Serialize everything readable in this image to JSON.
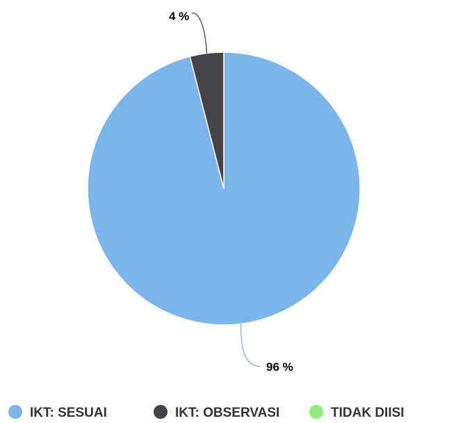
{
  "chart_data": {
    "type": "pie",
    "title": "",
    "categories": [
      "IKT: SESUAI",
      "IKT: OBSERVASI",
      "TIDAK DIISI"
    ],
    "values": [
      96,
      4,
      0
    ],
    "data_labels": [
      "96 %",
      "4 %",
      ""
    ],
    "colors": [
      "#7cb5ec",
      "#434348",
      "#90ed7d"
    ],
    "legend": {
      "position": "bottom",
      "items": [
        "IKT: SESUAI",
        "IKT: OBSERVASI",
        "TIDAK DIISI"
      ]
    }
  }
}
